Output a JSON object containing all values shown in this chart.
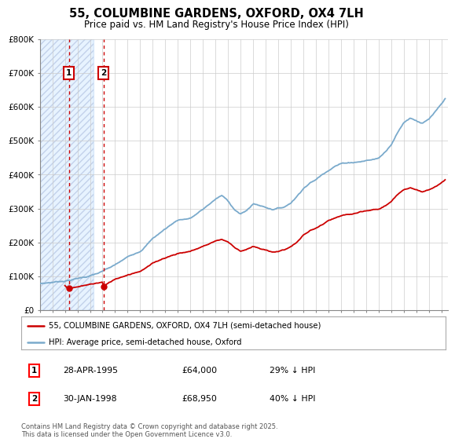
{
  "title": "55, COLUMBINE GARDENS, OXFORD, OX4 7LH",
  "subtitle": "Price paid vs. HM Land Registry's House Price Index (HPI)",
  "legend_label_red": "55, COLUMBINE GARDENS, OXFORD, OX4 7LH (semi-detached house)",
  "legend_label_blue": "HPI: Average price, semi-detached house, Oxford",
  "footer": "Contains HM Land Registry data © Crown copyright and database right 2025.\nThis data is licensed under the Open Government Licence v3.0.",
  "sale1_date": "28-APR-1995",
  "sale1_price": 64000,
  "sale1_label": "29% ↓ HPI",
  "sale2_date": "30-JAN-1998",
  "sale2_price": 68950,
  "sale2_label": "40% ↓ HPI",
  "sale1_year": 1995.32,
  "sale2_year": 1998.08,
  "y_min": 0,
  "y_max": 800000,
  "x_min": 1993.0,
  "x_max": 2025.5,
  "red_color": "#cc0000",
  "blue_color": "#7aaacc",
  "hatch_color": "#ddeeff",
  "background_color": "#ffffff",
  "grid_color": "#cccccc"
}
